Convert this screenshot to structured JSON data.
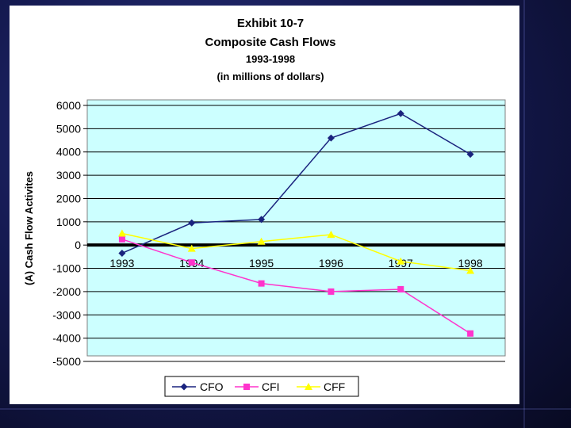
{
  "title_lines": [
    "Exhibit 10-7",
    "Composite Cash Flows",
    "1993-1998",
    "(in millions of dollars)"
  ],
  "ylabel": "(A) Cash Flow Activites",
  "legend": {
    "cfo": "CFO",
    "cfi": "CFI",
    "cff": "CFF"
  },
  "colors": {
    "cfo": "#1a237e",
    "cfi": "#ff33cc",
    "cff": "#ffff00",
    "plot_bg": "#ccffff",
    "zero_line": "#000000"
  },
  "chart_data": {
    "type": "line",
    "title": "Exhibit 10-7 Composite Cash Flows 1993-1998 (in millions of dollars)",
    "xlabel": "",
    "ylabel": "(A) Cash Flow Activites",
    "categories": [
      "1993",
      "1994",
      "1995",
      "1996",
      "1997",
      "1998"
    ],
    "ylim": [
      -5000,
      6000
    ],
    "yticks": [
      6000,
      5000,
      4000,
      3000,
      2000,
      1000,
      0,
      -1000,
      -2000,
      -3000,
      -4000,
      -5000
    ],
    "grid": true,
    "legend_position": "bottom",
    "series": [
      {
        "name": "CFO",
        "values": [
          -350,
          950,
          1100,
          4600,
          5650,
          3900
        ]
      },
      {
        "name": "CFI",
        "values": [
          250,
          -750,
          -1650,
          -2000,
          -1900,
          -3800
        ]
      },
      {
        "name": "CFF",
        "values": [
          500,
          -150,
          150,
          450,
          -700,
          -1100
        ]
      }
    ]
  }
}
